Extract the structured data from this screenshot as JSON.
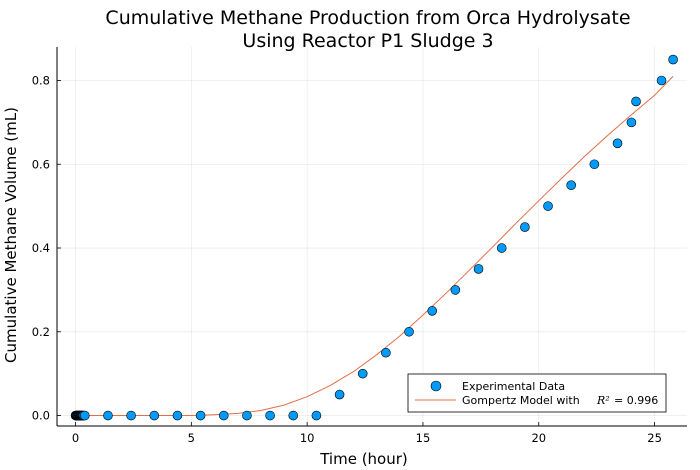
{
  "chart_data": {
    "type": "scatter",
    "title_lines": [
      "Cumulative Methane Production from Orca Hydrolysate",
      "Using Reactor P1 Sludge 3"
    ],
    "xlabel": "Time (hour)",
    "ylabel": "Cumulative Methane Volume (mL)",
    "xlim": [
      -0.8,
      26.4
    ],
    "ylim": [
      -0.025,
      0.88
    ],
    "xticks": [
      0,
      5,
      10,
      15,
      20,
      25
    ],
    "yticks": [
      0.0,
      0.2,
      0.4,
      0.6,
      0.8
    ],
    "xtick_labels": [
      "0",
      "5",
      "10",
      "15",
      "20",
      "25"
    ],
    "ytick_labels": [
      "0.0",
      "0.2",
      "0.4",
      "0.6",
      "0.8"
    ],
    "grid": true,
    "legend_position": "bottom-right",
    "series": [
      {
        "name": "Experimental Data",
        "kind": "scatter",
        "color": "#009AFA",
        "x": [
          0.0,
          0.02,
          0.04,
          0.06,
          0.08,
          0.1,
          0.12,
          0.14,
          0.16,
          0.18,
          0.2,
          0.22,
          0.24,
          0.26,
          0.28,
          0.3,
          0.32,
          0.35,
          0.4,
          1.4,
          2.4,
          3.4,
          4.4,
          5.4,
          6.4,
          7.4,
          8.4,
          9.4,
          10.4,
          11.4,
          12.4,
          13.4,
          14.4,
          15.4,
          16.4,
          17.4,
          18.4,
          19.4,
          20.4,
          21.4,
          22.4,
          23.4,
          24.0,
          24.2,
          25.3,
          25.8
        ],
        "y": [
          0,
          0,
          0,
          0,
          0,
          0,
          0,
          0,
          0,
          0,
          0,
          0,
          0,
          0,
          0,
          0,
          0,
          0,
          0,
          0,
          0,
          0,
          0,
          0,
          0,
          0,
          0,
          0,
          0,
          0.05,
          0.1,
          0.15,
          0.2,
          0.25,
          0.3,
          0.35,
          0.4,
          0.45,
          0.5,
          0.55,
          0.6,
          0.65,
          0.7,
          0.75,
          0.8,
          0.85
        ]
      },
      {
        "name": "Gompertz Model with",
        "r2_label": "R²",
        "r2_value": "= 0.996",
        "kind": "line",
        "color": "#E26F46",
        "x": [
          0,
          1,
          2,
          3,
          4,
          5,
          6,
          7,
          8,
          9,
          10,
          11,
          12,
          13,
          14,
          15,
          16,
          17,
          18,
          19,
          20,
          21,
          22,
          23,
          24,
          25,
          25.8
        ],
        "y": [
          0.0,
          0.0,
          0.0,
          0.0,
          0.0,
          0.0,
          0.002,
          0.005,
          0.012,
          0.025,
          0.045,
          0.072,
          0.105,
          0.145,
          0.19,
          0.24,
          0.292,
          0.347,
          0.402,
          0.458,
          0.513,
          0.567,
          0.62,
          0.67,
          0.718,
          0.765,
          0.81
        ]
      }
    ]
  }
}
